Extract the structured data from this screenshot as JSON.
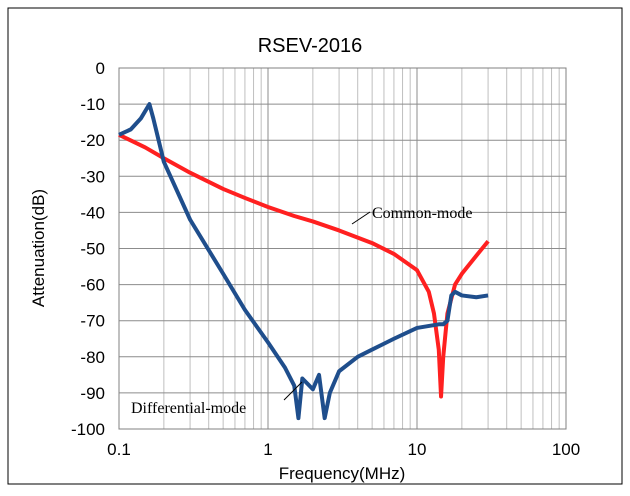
{
  "chart_data": {
    "type": "line",
    "title": "RSEV-2016",
    "x_label": "Frequency(MHz)",
    "y_label": "Attenuation(dB)",
    "log_x": true,
    "grid": true,
    "xlim": [
      0.1,
      100
    ],
    "xticks": [
      0.1,
      1,
      10,
      100
    ],
    "ylim": [
      -100,
      0
    ],
    "yticks": [
      0,
      -10,
      -20,
      -30,
      -40,
      -50,
      -60,
      -70,
      -80,
      -90,
      -100
    ],
    "annotations": [
      "Common-mode",
      "Differential-mode"
    ],
    "series": [
      {
        "name": "Common-mode",
        "color": "#ff2020",
        "x": [
          0.1,
          0.15,
          0.2,
          0.3,
          0.5,
          0.7,
          1,
          1.5,
          2,
          3,
          5,
          7,
          10,
          12,
          13,
          14,
          14.5,
          15,
          16,
          18,
          20,
          25,
          30
        ],
        "values": [
          -18.5,
          -22,
          -25,
          -29,
          -33.5,
          -36,
          -38.5,
          -41,
          -42.5,
          -45,
          -48.5,
          -51.5,
          -56,
          -62,
          -68,
          -78,
          -91,
          -80,
          -68,
          -60,
          -57,
          -52,
          -48
        ]
      },
      {
        "name": "Differential-mode",
        "color": "#1f4e8c",
        "x": [
          0.1,
          0.12,
          0.14,
          0.16,
          0.17,
          0.2,
          0.3,
          0.5,
          0.7,
          1,
          1.3,
          1.5,
          1.6,
          1.7,
          2,
          2.2,
          2.4,
          2.6,
          3,
          4,
          5,
          7,
          10,
          14,
          15,
          16,
          17,
          18,
          20,
          25,
          30
        ],
        "values": [
          -18.5,
          -17,
          -14,
          -10,
          -14,
          -26,
          -42,
          -57,
          -67,
          -76,
          -83,
          -88,
          -97,
          -86,
          -89,
          -85,
          -97,
          -90,
          -84,
          -80,
          -78,
          -75,
          -72,
          -71,
          -71,
          -70,
          -63,
          -62,
          -63,
          -63.5,
          -63
        ]
      }
    ]
  }
}
